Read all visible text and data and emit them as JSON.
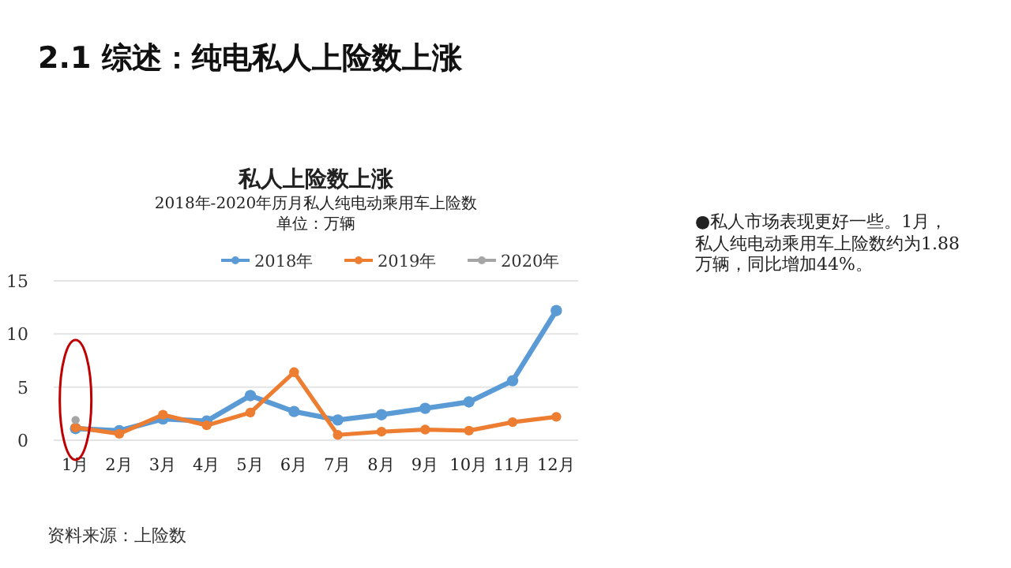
{
  "chart_data": {
    "type": "line",
    "title": "私人上险数上涨",
    "subtitle": "2018年-2020年历月私人纯电动乘用车上险数",
    "categories": [
      "1月",
      "2月",
      "3月",
      "4月",
      "5月",
      "6月",
      "7月",
      "8月",
      "9月",
      "10月",
      "11月",
      "12月"
    ],
    "series": [
      {
        "name": "2018年",
        "color": "#5b9bd5",
        "values": [
          1.1,
          0.9,
          2.0,
          1.8,
          4.2,
          2.7,
          1.9,
          2.4,
          3.0,
          3.6,
          5.6,
          12.2
        ]
      },
      {
        "name": "2019年",
        "color": "#ed7d31",
        "values": [
          1.2,
          0.6,
          2.4,
          1.4,
          2.6,
          6.4,
          0.5,
          0.8,
          1.0,
          0.9,
          1.7,
          2.2
        ]
      },
      {
        "name": "2020年",
        "color": "#a5a5a5",
        "values": [
          1.9,
          null,
          null,
          null,
          null,
          null,
          null,
          null,
          null,
          null,
          null,
          null
        ]
      }
    ],
    "ylim": [
      0,
      15
    ],
    "yticks": [
      0,
      5,
      10,
      15
    ],
    "grid": "y",
    "legend": "top",
    "marker": "circle",
    "line_style": "solid",
    "annotations": [
      "2.1 综述：纯电私人上险数上涨",
      "单位：万辆",
      "●私人市场表现更好一些。1月，私人纯电动乘用车上险数约为1.88万辆，同比增加44%。",
      "资料来源：上险数"
    ]
  }
}
